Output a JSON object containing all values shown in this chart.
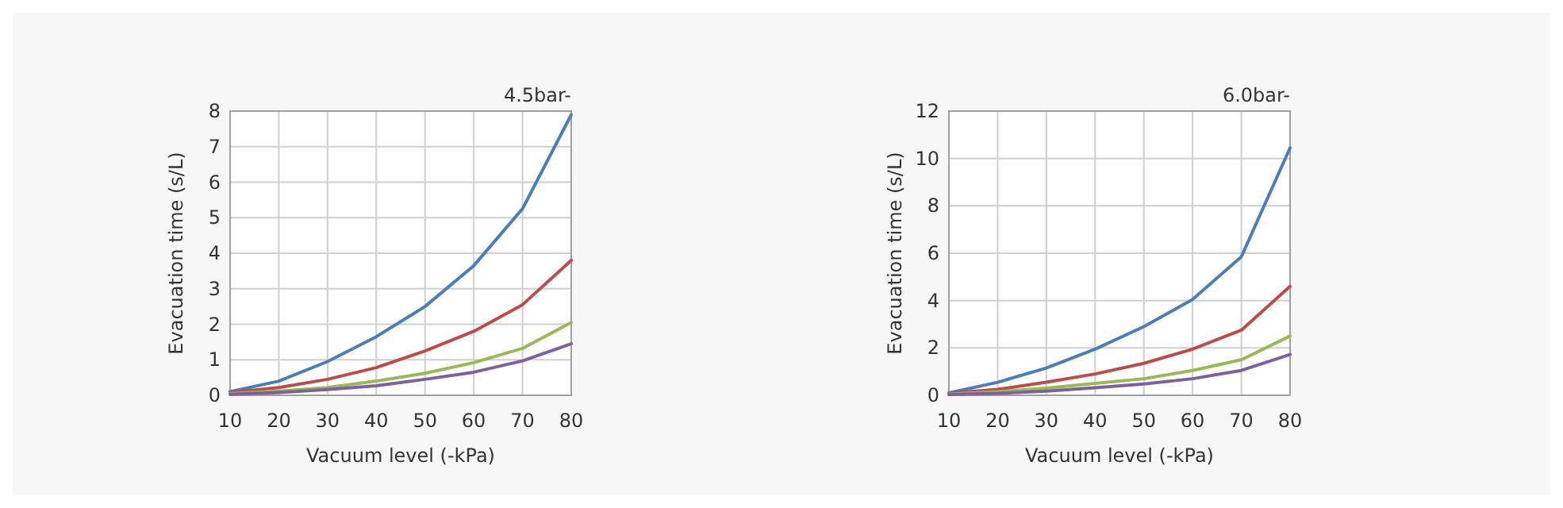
{
  "chart_data": [
    {
      "type": "line",
      "title": "4.5bar-",
      "xlabel": "Vacuum level  (-kPa)",
      "ylabel": "Evacuation time (s/L)",
      "x": [
        10,
        20,
        30,
        40,
        50,
        60,
        70,
        80
      ],
      "xlim": [
        10,
        80
      ],
      "xticks": [
        10,
        20,
        30,
        40,
        50,
        60,
        70,
        80
      ],
      "ylim": [
        0,
        8
      ],
      "yticks": [
        0,
        1,
        2,
        3,
        4,
        5,
        6,
        7,
        8
      ],
      "grid": true,
      "marker": "none",
      "line_style": "solid",
      "series": [
        {
          "color": "#4a7ebb",
          "values": [
            0.1,
            0.4,
            0.95,
            1.65,
            2.5,
            3.65,
            5.25,
            7.9
          ]
        },
        {
          "color": "#be4b48",
          "values": [
            0.08,
            0.22,
            0.45,
            0.78,
            1.25,
            1.8,
            2.55,
            3.8
          ]
        },
        {
          "color": "#98b954",
          "values": [
            0.05,
            0.12,
            0.22,
            0.4,
            0.62,
            0.92,
            1.32,
            2.05
          ]
        },
        {
          "color": "#7d60a0",
          "values": [
            0.03,
            0.08,
            0.16,
            0.27,
            0.45,
            0.65,
            0.97,
            1.45
          ]
        }
      ]
    },
    {
      "type": "line",
      "title": "6.0bar-",
      "xlabel": "Vacuum level  (-kPa)",
      "ylabel": "Evacuation time (s/L)",
      "x": [
        10,
        20,
        30,
        40,
        50,
        60,
        70,
        80
      ],
      "xlim": [
        10,
        80
      ],
      "xticks": [
        10,
        20,
        30,
        40,
        50,
        60,
        70,
        80
      ],
      "ylim": [
        0,
        12
      ],
      "yticks": [
        0,
        2,
        4,
        6,
        8,
        10,
        12
      ],
      "grid": true,
      "marker": "none",
      "line_style": "solid",
      "series": [
        {
          "color": "#4a7ebb",
          "values": [
            0.1,
            0.55,
            1.15,
            1.95,
            2.9,
            4.05,
            5.85,
            10.45
          ]
        },
        {
          "color": "#be4b48",
          "values": [
            0.08,
            0.25,
            0.55,
            0.9,
            1.35,
            1.95,
            2.75,
            4.6
          ]
        },
        {
          "color": "#98b954",
          "values": [
            0.05,
            0.15,
            0.3,
            0.5,
            0.7,
            1.05,
            1.5,
            2.5
          ]
        },
        {
          "color": "#7d60a0",
          "values": [
            0.03,
            0.08,
            0.18,
            0.32,
            0.48,
            0.7,
            1.05,
            1.72
          ]
        }
      ]
    }
  ]
}
